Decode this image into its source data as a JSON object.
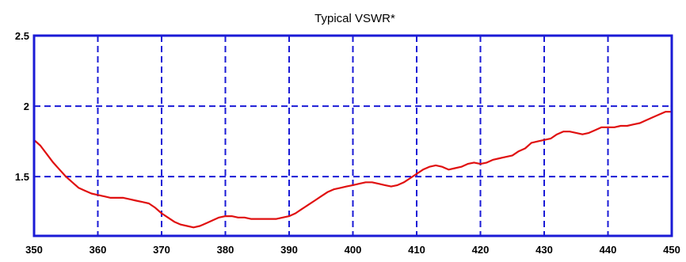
{
  "chart_data": {
    "type": "line",
    "title": "Typical VSWR*",
    "xlabel": "",
    "ylabel": "",
    "xlim": [
      350,
      450
    ],
    "ylim": [
      1.08,
      2.5
    ],
    "grid": true,
    "x_ticks": [
      "350",
      "360",
      "370",
      "380",
      "390",
      "400",
      "410",
      "420",
      "430",
      "440",
      "450"
    ],
    "y_ticks": [
      {
        "value": 2.5,
        "label": "2.5"
      },
      {
        "value": 2.0,
        "label": "2"
      },
      {
        "value": 1.5,
        "label": "1.5"
      }
    ],
    "colors": {
      "frame": "#1a1ad6",
      "grid": "#1a1ad6",
      "line": "#e01010"
    },
    "series": [
      {
        "x": [
          350,
          351,
          352,
          353,
          354,
          355,
          356,
          357,
          358,
          359,
          360,
          361,
          362,
          363,
          364,
          365,
          366,
          367,
          368,
          369,
          370,
          371,
          372,
          373,
          374,
          375,
          376,
          377,
          378,
          379,
          380,
          381,
          382,
          383,
          384,
          385,
          386,
          387,
          388,
          389,
          390,
          391,
          392,
          393,
          394,
          395,
          396,
          397,
          398,
          399,
          400,
          401,
          402,
          403,
          404,
          405,
          406,
          407,
          408,
          409,
          410,
          411,
          412,
          413,
          414,
          415,
          416,
          417,
          418,
          419,
          420,
          421,
          422,
          423,
          424,
          425,
          426,
          427,
          428,
          429,
          430,
          431,
          432,
          433,
          434,
          435,
          436,
          437,
          438,
          439,
          440,
          441,
          442,
          443,
          444,
          445,
          446,
          447,
          448,
          449,
          450
        ],
        "values": [
          1.76,
          1.72,
          1.66,
          1.6,
          1.55,
          1.5,
          1.46,
          1.42,
          1.4,
          1.38,
          1.37,
          1.36,
          1.35,
          1.35,
          1.35,
          1.34,
          1.33,
          1.32,
          1.31,
          1.28,
          1.24,
          1.21,
          1.18,
          1.16,
          1.15,
          1.14,
          1.15,
          1.17,
          1.19,
          1.21,
          1.22,
          1.22,
          1.21,
          1.21,
          1.2,
          1.2,
          1.2,
          1.2,
          1.2,
          1.21,
          1.22,
          1.24,
          1.27,
          1.3,
          1.33,
          1.36,
          1.39,
          1.41,
          1.42,
          1.43,
          1.44,
          1.45,
          1.46,
          1.46,
          1.45,
          1.44,
          1.43,
          1.44,
          1.46,
          1.49,
          1.52,
          1.55,
          1.57,
          1.58,
          1.57,
          1.55,
          1.56,
          1.57,
          1.59,
          1.6,
          1.59,
          1.6,
          1.62,
          1.63,
          1.64,
          1.65,
          1.68,
          1.7,
          1.74,
          1.75,
          1.76,
          1.77,
          1.8,
          1.82,
          1.82,
          1.81,
          1.8,
          1.81,
          1.83,
          1.85,
          1.85,
          1.85,
          1.86,
          1.86,
          1.87,
          1.88,
          1.9,
          1.92,
          1.94,
          1.96,
          1.96
        ]
      }
    ]
  }
}
